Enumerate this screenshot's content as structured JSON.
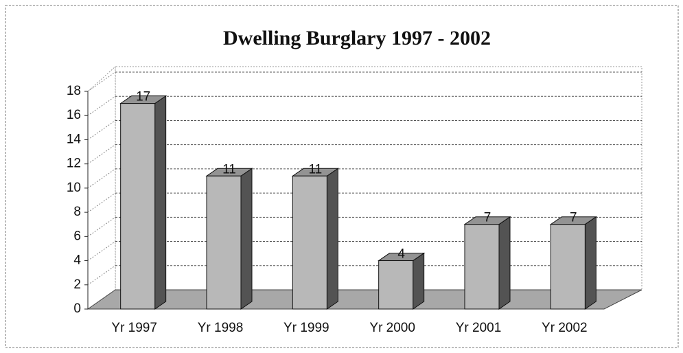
{
  "chart_data": {
    "type": "bar3d",
    "title": "Dwelling Burglary 1997 - 2002",
    "categories": [
      "Yr 1997",
      "Yr 1998",
      "Yr 1999",
      "Yr 2000",
      "Yr 2001",
      "Yr 2002"
    ],
    "values": [
      17,
      11,
      11,
      4,
      7,
      7
    ],
    "color": "#b8b8b8",
    "ylim": [
      0,
      18
    ],
    "yticks": [
      0,
      2,
      4,
      6,
      8,
      10,
      12,
      14,
      16,
      18
    ],
    "grid": true
  }
}
